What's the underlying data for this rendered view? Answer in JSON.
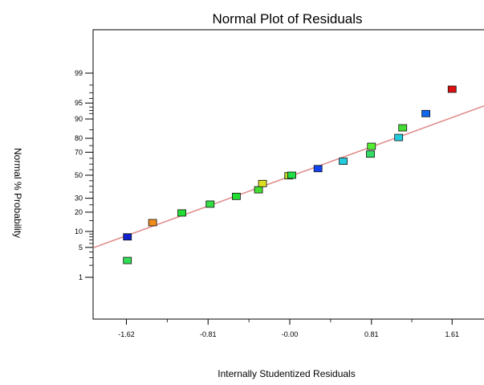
{
  "chart_data": {
    "type": "scatter",
    "title": "Normal Plot of Residuals",
    "xlabel": "Internally Studentized Residuals",
    "ylabel": "Normal % Probability",
    "xlim": [
      -1.95,
      1.95
    ],
    "x_ticks": [
      {
        "value": -1.62,
        "label": "-1.62"
      },
      {
        "value": -0.81,
        "label": "-0.81"
      },
      {
        "value": 0.0,
        "label": "-0.00"
      },
      {
        "value": 0.81,
        "label": "0.81"
      },
      {
        "value": 1.61,
        "label": "1.61"
      }
    ],
    "y_ticks": [
      {
        "value": 1,
        "label": "1"
      },
      {
        "value": 5,
        "label": "5"
      },
      {
        "value": 10,
        "label": "10"
      },
      {
        "value": 20,
        "label": "20"
      },
      {
        "value": 30,
        "label": "30"
      },
      {
        "value": 50,
        "label": "50"
      },
      {
        "value": 70,
        "label": "70"
      },
      {
        "value": 80,
        "label": "80"
      },
      {
        "value": 90,
        "label": "90"
      },
      {
        "value": 95,
        "label": "95"
      },
      {
        "value": 99,
        "label": "99"
      }
    ],
    "y_scale": "normal-probability",
    "grid": false,
    "reference_line": {
      "color": "#e08a8a",
      "x": [
        -1.95,
        1.95
      ],
      "y": [
        4.9,
        94.5
      ]
    },
    "points": [
      {
        "x": -1.61,
        "y": 2.6,
        "color": "#33dd55"
      },
      {
        "x": -1.61,
        "y": 8.0,
        "color": "#1122cc"
      },
      {
        "x": -1.36,
        "y": 14.0,
        "color": "#f08c1c"
      },
      {
        "x": -1.07,
        "y": 19.5,
        "color": "#22dd33"
      },
      {
        "x": -0.79,
        "y": 25.5,
        "color": "#33dd44"
      },
      {
        "x": -0.53,
        "y": 31.5,
        "color": "#22dd33"
      },
      {
        "x": -0.31,
        "y": 37.0,
        "color": "#44dd33"
      },
      {
        "x": -0.27,
        "y": 42.5,
        "color": "#dddd22"
      },
      {
        "x": -0.01,
        "y": 49.5,
        "color": "#bbdd22"
      },
      {
        "x": 0.02,
        "y": 50.0,
        "color": "#22dd44"
      },
      {
        "x": 0.28,
        "y": 56.0,
        "color": "#1144ee"
      },
      {
        "x": 0.53,
        "y": 62.5,
        "color": "#22ccdd"
      },
      {
        "x": 0.8,
        "y": 68.5,
        "color": "#33dd66"
      },
      {
        "x": 0.81,
        "y": 74.5,
        "color": "#55ee33"
      },
      {
        "x": 1.08,
        "y": 80.5,
        "color": "#22ccdd"
      },
      {
        "x": 1.12,
        "y": 86.0,
        "color": "#44dd33"
      },
      {
        "x": 1.35,
        "y": 92.0,
        "color": "#1166ee"
      },
      {
        "x": 1.61,
        "y": 97.5,
        "color": "#dd1111"
      }
    ]
  }
}
